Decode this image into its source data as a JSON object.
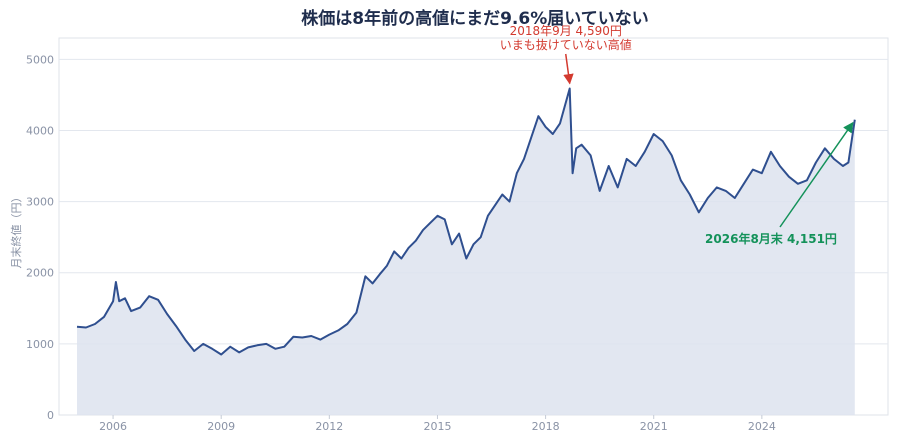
{
  "chart_data": {
    "type": "area",
    "title": "株価は8年前の高値にまだ9.6%届いていない",
    "ylabel": "月末終値（円）",
    "xlabel": "",
    "ylim": [
      0,
      5300
    ],
    "xlim": [
      2004.5,
      2027.5
    ],
    "yticks": [
      0,
      1000,
      2000,
      3000,
      4000,
      5000
    ],
    "yticklabels": [
      "0",
      "1000",
      "2000",
      "3000",
      "4000",
      "5000"
    ],
    "xticks": [
      2006,
      2009,
      2012,
      2015,
      2018,
      2021,
      2024
    ],
    "xticklabels": [
      "2006",
      "2009",
      "2012",
      "2015",
      "2018",
      "2021",
      "2024"
    ],
    "grid": "horizontal",
    "colors": {
      "line": "#2f4f8f",
      "fill": "#dde3ef",
      "peak_annotation": "#d33a2f",
      "current_annotation": "#14925a"
    },
    "annotations": [
      {
        "kind": "peak",
        "x": 2018.67,
        "y": 4590,
        "lines": [
          "2018年9月 4,590円",
          "いまも抜けていない高値"
        ]
      },
      {
        "kind": "current",
        "x": 2026.58,
        "y": 4151,
        "lines": [
          "2026年8月末 4,151円"
        ]
      }
    ],
    "series": [
      {
        "x": [
          2005.0,
          2005.25,
          2005.5,
          2005.75,
          2006.0,
          2006.08,
          2006.17,
          2006.33,
          2006.5,
          2006.75,
          2007.0,
          2007.25,
          2007.5,
          2007.75,
          2008.0,
          2008.25,
          2008.5,
          2008.75,
          2009.0,
          2009.25,
          2009.5,
          2009.75,
          2010.0,
          2010.25,
          2010.5,
          2010.75,
          2011.0,
          2011.25,
          2011.5,
          2011.75,
          2012.0,
          2012.25,
          2012.5,
          2012.75,
          2013.0,
          2013.2,
          2013.4,
          2013.6,
          2013.8,
          2014.0,
          2014.2,
          2014.4,
          2014.6,
          2014.8,
          2015.0,
          2015.2,
          2015.4,
          2015.6,
          2015.8,
          2016.0,
          2016.2,
          2016.4,
          2016.6,
          2016.8,
          2017.0,
          2017.2,
          2017.4,
          2017.6,
          2017.8,
          2018.0,
          2018.2,
          2018.4,
          2018.67,
          2018.75,
          2018.85,
          2019.0,
          2019.25,
          2019.5,
          2019.75,
          2020.0,
          2020.25,
          2020.5,
          2020.75,
          2021.0,
          2021.25,
          2021.5,
          2021.75,
          2022.0,
          2022.25,
          2022.5,
          2022.75,
          2023.0,
          2023.25,
          2023.5,
          2023.75,
          2024.0,
          2024.25,
          2024.5,
          2024.75,
          2025.0,
          2025.25,
          2025.5,
          2025.75,
          2026.0,
          2026.25,
          2026.4,
          2026.58
        ],
        "values": [
          1240,
          1230,
          1280,
          1380,
          1600,
          1870,
          1600,
          1640,
          1460,
          1510,
          1670,
          1620,
          1420,
          1250,
          1060,
          900,
          1000,
          930,
          850,
          960,
          880,
          950,
          980,
          1000,
          930,
          960,
          1100,
          1090,
          1110,
          1060,
          1130,
          1190,
          1280,
          1440,
          1950,
          1850,
          1980,
          2100,
          2300,
          2200,
          2350,
          2450,
          2600,
          2700,
          2800,
          2750,
          2400,
          2550,
          2200,
          2400,
          2500,
          2800,
          2950,
          3100,
          3000,
          3400,
          3600,
          3900,
          4200,
          4050,
          3950,
          4100,
          4590,
          3400,
          3750,
          3800,
          3650,
          3150,
          3500,
          3200,
          3600,
          3500,
          3700,
          3950,
          3850,
          3650,
          3300,
          3100,
          2850,
          3050,
          3200,
          3150,
          3050,
          3250,
          3450,
          3400,
          3700,
          3500,
          3350,
          3250,
          3300,
          3550,
          3750,
          3600,
          3500,
          3550,
          4151
        ]
      }
    ]
  }
}
